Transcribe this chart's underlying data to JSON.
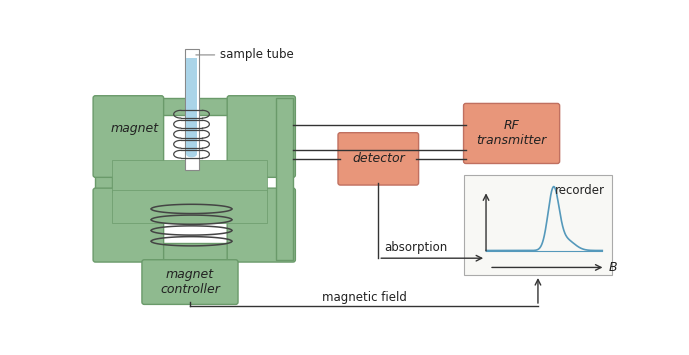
{
  "magnet_color": "#8fba8f",
  "magnet_edge_color": "#6a9a6a",
  "detector_color": "#e8967a",
  "detector_edge_color": "#c07060",
  "recorder_bg": "#f8f8f5",
  "recorder_edge": "#aaaaaa",
  "sample_color": "#aad4e8",
  "coil_color": "#444444",
  "line_color": "#333333",
  "nmr_peak_color": "#5599bb",
  "text_color": "#222222",
  "label_magnet": "magnet",
  "label_detector": "detector",
  "label_rf": "RF\ntransmitter",
  "label_controller": "magnet\ncontroller",
  "label_recorder": "recorder",
  "label_sample": "sample tube",
  "label_absorption": "absorption",
  "label_magnetic": "magnetic field",
  "label_B": "B"
}
